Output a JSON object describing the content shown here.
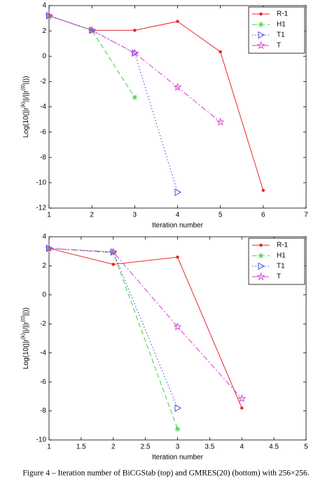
{
  "charts": [
    {
      "type": "line",
      "ylabel": [
        "Log(10(||r",
        "(k)",
        "||/||r",
        "(0)",
        "||))"
      ],
      "xlabel": "Iteration number",
      "x": [
        1,
        2,
        3,
        4,
        5,
        6
      ],
      "xlim": [
        1,
        7
      ],
      "xticks": [
        1,
        2,
        3,
        4,
        5,
        6,
        7
      ],
      "ylim": [
        -12,
        4
      ],
      "yticks": [
        -12,
        -10,
        -8,
        -6,
        -4,
        -2,
        0,
        2,
        4
      ],
      "legend": "top-right",
      "series": [
        {
          "name": "R-1",
          "color": "#e8262c",
          "dash": "none",
          "marker": "dot",
          "values": [
            3.2,
            2.05,
            2.05,
            2.75,
            0.35,
            -10.6
          ]
        },
        {
          "name": "H1",
          "color": "#3bd23b",
          "dash": "7,4",
          "marker": "asterisk",
          "values": [
            3.2,
            2.05,
            -3.25,
            null,
            null,
            null
          ]
        },
        {
          "name": "T1",
          "color": "#3b3bd8",
          "dash": "1.5,3",
          "marker": "triangle-right",
          "values": [
            3.2,
            2.05,
            0.25,
            -10.75,
            null,
            null
          ]
        },
        {
          "name": "T",
          "color": "#d83bd8",
          "dash": "8,3,2,3",
          "marker": "pentagram",
          "values": [
            3.2,
            2.05,
            0.25,
            -2.45,
            -5.2,
            null
          ]
        }
      ]
    },
    {
      "type": "line",
      "ylabel": [
        "Log(10(||r",
        "(k)",
        "||/||r",
        "(0)",
        "||))"
      ],
      "xlabel": "Iteration number",
      "x": [
        1,
        2,
        3,
        4
      ],
      "xlim": [
        1,
        5
      ],
      "xticks": [
        1,
        1.5,
        2,
        2.5,
        3,
        3.5,
        4,
        4.5,
        5
      ],
      "ylim": [
        -10,
        4
      ],
      "yticks": [
        -10,
        -8,
        -6,
        -4,
        -2,
        0,
        2,
        4
      ],
      "legend": "top-right",
      "series": [
        {
          "name": "R-1",
          "color": "#e8262c",
          "dash": "none",
          "marker": "dot",
          "values": [
            3.2,
            2.1,
            2.6,
            -7.8
          ]
        },
        {
          "name": "H1",
          "color": "#3bd23b",
          "dash": "7,4",
          "marker": "asterisk",
          "values": [
            3.2,
            2.9,
            -9.25,
            null
          ]
        },
        {
          "name": "T1",
          "color": "#3b3bd8",
          "dash": "1.5,3",
          "marker": "triangle-right",
          "values": [
            3.2,
            2.95,
            -7.8,
            null
          ]
        },
        {
          "name": "T",
          "color": "#d83bd8",
          "dash": "8,3,2,3",
          "marker": "pentagram",
          "values": [
            3.2,
            2.95,
            -2.2,
            -7.15
          ]
        }
      ]
    }
  ],
  "caption": "Figure 4 – Iteration number of BiCGStab (top) and GMRES(20) (bottom) with 256×256."
}
